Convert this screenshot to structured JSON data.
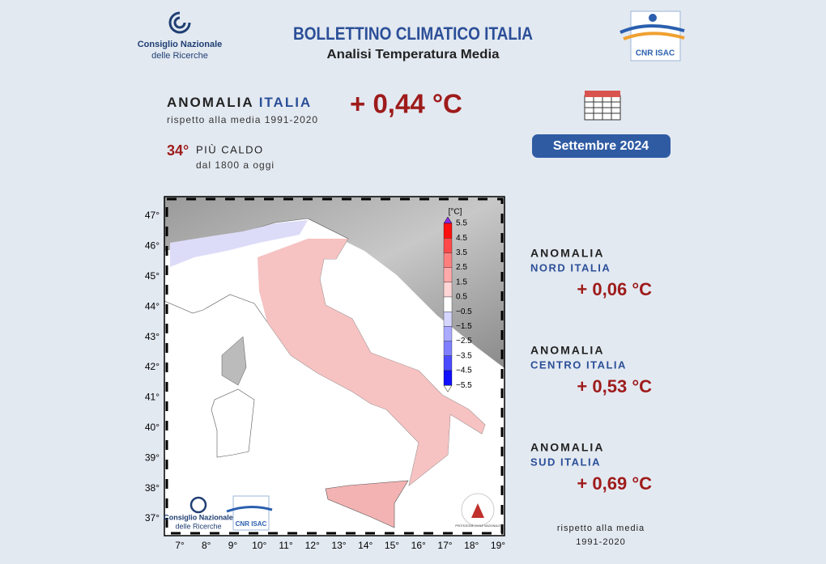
{
  "header": {
    "cnr_name": "Consiglio Nazionale",
    "cnr_name_2": "delle Ricerche",
    "title": "BOLLETTINO CLIMATICO ITALIA",
    "subtitle": "Analisi Temperatura Media",
    "isac_logo": "CNR ISAC"
  },
  "national": {
    "label": "ANOMALIA",
    "region": "ITALIA",
    "value": "+ 0,44 °C",
    "reference": "rispetto alla media 1991-2020",
    "rank": "34°",
    "rank_text": "PIÙ CALDO",
    "since": "dal 1800 a oggi"
  },
  "date": "Settembre 2024",
  "regions": [
    {
      "label": "ANOMALIA",
      "region": "NORD ITALIA",
      "value": "+ 0,06 °C"
    },
    {
      "label": "ANOMALIA",
      "region": "CENTRO ITALIA",
      "value": "+ 0,53 °C"
    },
    {
      "label": "ANOMALIA",
      "region": "SUD ITALIA",
      "value": "+ 0,69 °C"
    }
  ],
  "footnote": [
    "rispetto alla media",
    "1991-2020"
  ],
  "map": {
    "colorbar_unit": "[°C]",
    "colorbar_labels": [
      "5.5",
      "4.5",
      "3.5",
      "2.5",
      "1.5",
      "0.5",
      "−0.5",
      "−1.5",
      "−2.5",
      "−3.5",
      "−4.5",
      "−5.5"
    ],
    "lat_labels": [
      "47°",
      "46°",
      "45°",
      "44°",
      "43°",
      "42°",
      "41°",
      "40°",
      "39°",
      "38°",
      "37°"
    ],
    "lon_labels": [
      "7°",
      "8°",
      "9°",
      "10°",
      "11°",
      "12°",
      "13°",
      "14°",
      "15°",
      "16°",
      "17°",
      "18°",
      "19°"
    ],
    "inset_cnr": "Consiglio Nazionale",
    "inset_cnr_2": "delle Ricerche",
    "inset_isac": "CNR ISAC",
    "protezione": "PROTEZIONE CIVILE NAZIONALE"
  }
}
